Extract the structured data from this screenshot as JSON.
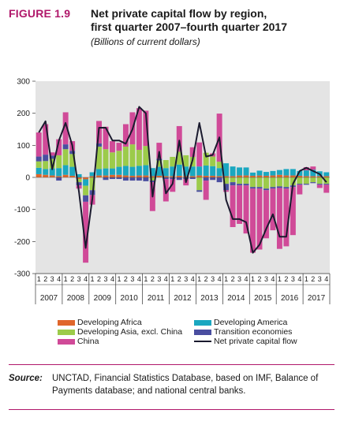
{
  "figure": {
    "label": "FIGURE 1.9",
    "title_line1": "Net private capital flow by region,",
    "title_line2": "first quarter 2007–fourth quarter 2017",
    "subtitle": "(Billions of current dollars)"
  },
  "source": {
    "label": "Source:",
    "text": "UNCTAD, Financial Statistics Database, based on IMF, Balance of Payments database; and national central banks."
  },
  "chart_data": {
    "type": "bar",
    "stacked": true,
    "ylim": [
      -300,
      300
    ],
    "yticks": [
      300,
      200,
      100,
      0,
      -100,
      -200,
      -300
    ],
    "grid": false,
    "legend_position": "bottom",
    "quarter_labels": [
      "1",
      "2",
      "3",
      "4"
    ],
    "years": [
      "2007",
      "2008",
      "2009",
      "2010",
      "2011",
      "2012",
      "2013",
      "2014",
      "2015",
      "2016",
      "2017"
    ],
    "series": [
      {
        "name": "Developing Africa",
        "color": "#e0662b",
        "values": [
          10,
          8,
          6,
          4,
          8,
          5,
          -5,
          -6,
          4,
          6,
          6,
          8,
          8,
          6,
          5,
          6,
          6,
          4,
          5,
          4,
          4,
          5,
          4,
          4,
          6,
          5,
          5,
          4,
          4,
          4,
          6,
          6,
          5,
          6,
          5,
          6,
          8,
          6,
          6,
          5,
          4,
          4,
          4,
          4
        ]
      },
      {
        "name": "Developing America",
        "color": "#1aa7c0",
        "values": [
          20,
          18,
          22,
          25,
          30,
          28,
          10,
          -20,
          12,
          20,
          22,
          20,
          25,
          30,
          28,
          30,
          32,
          25,
          28,
          25,
          30,
          35,
          30,
          30,
          28,
          32,
          30,
          25,
          40,
          30,
          25,
          25,
          10,
          15,
          12,
          14,
          15,
          20,
          20,
          15,
          18,
          20,
          15,
          12
        ]
      },
      {
        "name": "Developing Asia, excl. China",
        "color": "#9ccb4a",
        "values": [
          20,
          25,
          30,
          40,
          50,
          40,
          -10,
          -30,
          -40,
          70,
          60,
          50,
          50,
          60,
          70,
          50,
          60,
          -10,
          20,
          25,
          30,
          40,
          35,
          30,
          -40,
          40,
          30,
          20,
          -20,
          -15,
          -20,
          -20,
          -30,
          -30,
          -35,
          -30,
          -28,
          -30,
          -25,
          -20,
          -20,
          -15,
          -20,
          -20
        ]
      },
      {
        "name": "Transition economies",
        "color": "#4a4ea0",
        "values": [
          15,
          20,
          10,
          -10,
          15,
          10,
          -10,
          -20,
          -15,
          10,
          -8,
          -5,
          -5,
          -10,
          -10,
          -10,
          -12,
          -5,
          5,
          -5,
          -5,
          -8,
          -5,
          -5,
          -5,
          -10,
          -8,
          -15,
          -20,
          -10,
          -5,
          -5,
          -5,
          -5,
          -5,
          -5,
          -5,
          -5,
          -5,
          -3,
          -3,
          -3,
          -3,
          -3
        ]
      },
      {
        "name": "China",
        "color": "#d04a98",
        "values": [
          75,
          95,
          10,
          50,
          100,
          30,
          -10,
          -190,
          -30,
          70,
          70,
          35,
          25,
          70,
          100,
          130,
          110,
          -90,
          50,
          -70,
          -40,
          80,
          -20,
          30,
          75,
          -60,
          10,
          150,
          -5,
          -130,
          -120,
          -150,
          -200,
          -190,
          -150,
          -130,
          -190,
          -180,
          -150,
          -30,
          10,
          10,
          -10,
          -25
        ]
      }
    ],
    "line": {
      "name": "Net private capital flow",
      "color": "#1a1a2e",
      "values": [
        140,
        175,
        25,
        115,
        170,
        100,
        -45,
        -220,
        -65,
        155,
        155,
        115,
        115,
        105,
        150,
        220,
        200,
        -60,
        80,
        -50,
        -20,
        115,
        -15,
        55,
        170,
        65,
        70,
        125,
        -70,
        -130,
        -130,
        -140,
        -235,
        -210,
        -160,
        -115,
        -185,
        -185,
        -20,
        20,
        30,
        20,
        10,
        -15
      ]
    }
  }
}
